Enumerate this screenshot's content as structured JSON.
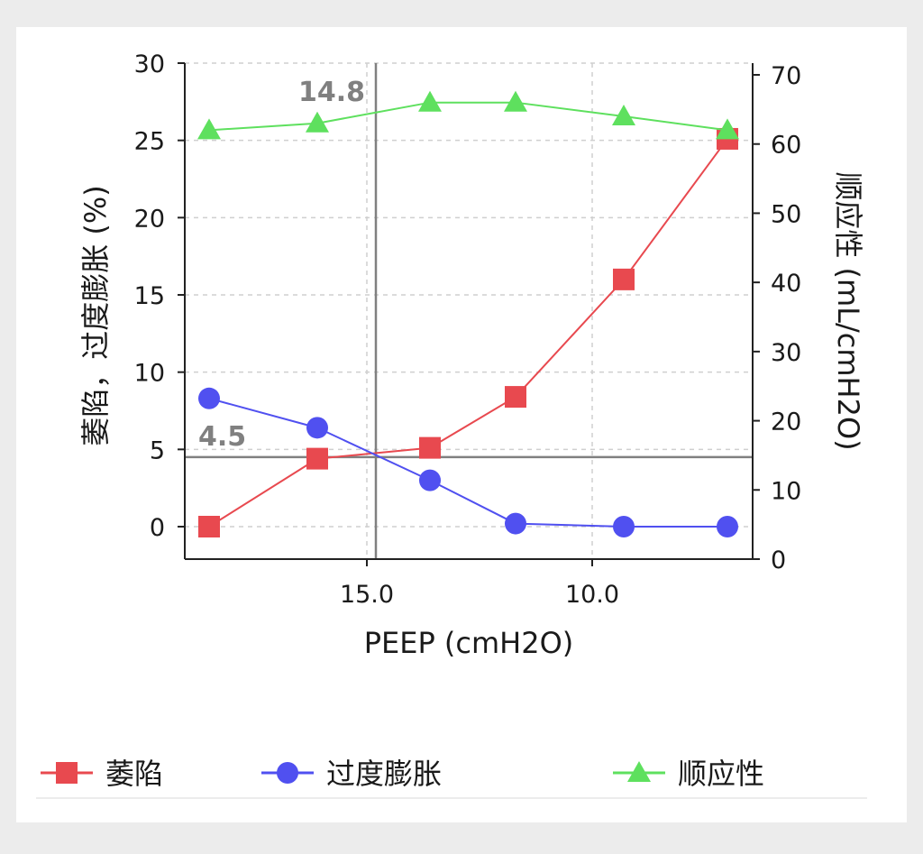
{
  "chart_data": {
    "type": "line",
    "xlabel": "PEEP (cmH2O)",
    "ylabel_left": "萎陷，过度膨胀 (%)",
    "ylabel_right": "顺应性 (mL/cmH2O)",
    "x_axis_reversed": true,
    "xlim": [
      19.1,
      6.4
    ],
    "x_ticks": [
      15.0,
      10.0
    ],
    "x_tick_labels": [
      "15.0",
      "10.0"
    ],
    "ylim_left": [
      -2,
      30
    ],
    "y_ticks_left": [
      0,
      5,
      10,
      15,
      20,
      25,
      30
    ],
    "ylim_right": [
      0,
      72
    ],
    "y_ticks_right": [
      0,
      10,
      20,
      30,
      40,
      50,
      60,
      70
    ],
    "grid": true,
    "legend_position": "bottom",
    "x": [
      18.5,
      16.1,
      13.6,
      11.7,
      9.3,
      7.0
    ],
    "series": [
      {
        "name": "萎陷",
        "axis": "left",
        "marker": "square",
        "color": "#e8494f",
        "values": [
          0,
          4.4,
          5.1,
          8.4,
          16.0,
          25.1
        ]
      },
      {
        "name": "过度膨胀",
        "axis": "left",
        "marker": "circle",
        "color": "#5050f0",
        "values": [
          8.3,
          6.4,
          3.0,
          0.2,
          0.0,
          0.0
        ]
      },
      {
        "name": "顺应性",
        "axis": "right",
        "marker": "triangle",
        "color": "#5ee05e",
        "values": [
          62,
          63,
          66,
          66,
          64,
          62
        ]
      }
    ],
    "reference_lines": [
      {
        "orientation": "vertical",
        "value": 14.8,
        "label": "14.8",
        "color": "#808080"
      },
      {
        "orientation": "horizontal",
        "value": 4.5,
        "label": "4.5",
        "color": "#808080"
      }
    ]
  }
}
